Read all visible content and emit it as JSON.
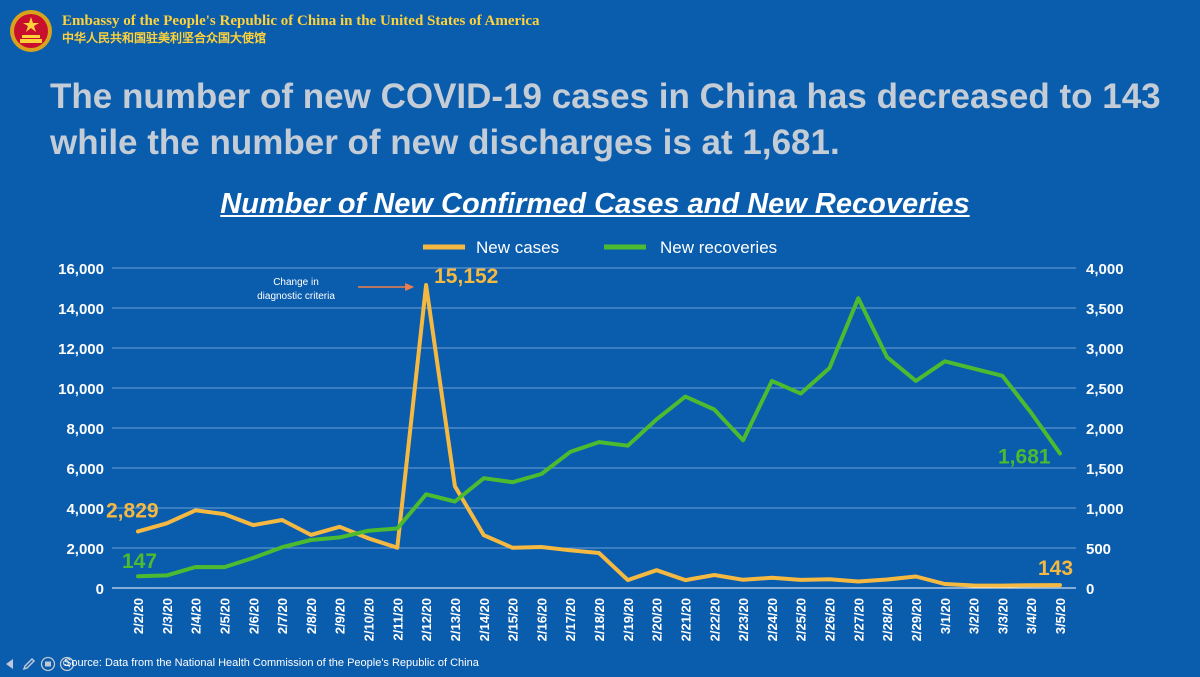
{
  "header": {
    "org_en": "Embassy of the People's Republic of China in the United States of America",
    "org_zh": "中华人民共和国驻美利坚合众国大使馆"
  },
  "headline": "The number of new COVID-19 cases in China has decreased to 143 while the number of new discharges is at 1,681.",
  "source": "Source: Data from the National Health Commission of the People's Republic of China",
  "colors": {
    "background": "#0a5cad",
    "new_cases": "#f5b942",
    "new_recoveries": "#4cbb2f",
    "annotation_arrow": "#f07e4a"
  },
  "chart_data": {
    "type": "line",
    "title": "Number of New Confirmed Cases and New Recoveries",
    "categories": [
      "2/2/20",
      "2/3/20",
      "2/4/20",
      "2/5/20",
      "2/6/20",
      "2/7/20",
      "2/8/20",
      "2/9/20",
      "2/10/20",
      "2/11/20",
      "2/12/20",
      "2/13/20",
      "2/14/20",
      "2/15/20",
      "2/16/20",
      "2/17/20",
      "2/18/20",
      "2/19/20",
      "2/20/20",
      "2/21/20",
      "2/22/20",
      "2/23/20",
      "2/24/20",
      "2/25/20",
      "2/26/20",
      "2/27/20",
      "2/28/20",
      "2/29/20",
      "3/1/20",
      "3/2/20",
      "3/3/20",
      "3/4/20",
      "3/5/20"
    ],
    "series": [
      {
        "name": "New cases",
        "axis": "left",
        "color": "#f5b942",
        "values": [
          2829,
          3235,
          3887,
          3694,
          3143,
          3399,
          2656,
          3062,
          2478,
          2015,
          15152,
          5090,
          2641,
          2009,
          2048,
          1886,
          1749,
          394,
          889,
          397,
          648,
          409,
          508,
          406,
          433,
          327,
          427,
          573,
          202,
          125,
          119,
          139,
          143
        ]
      },
      {
        "name": "New recoveries",
        "axis": "right",
        "color": "#4cbb2f",
        "values": [
          147,
          157,
          262,
          261,
          376,
          510,
          600,
          632,
          716,
          744,
          1171,
          1081,
          1373,
          1323,
          1425,
          1701,
          1824,
          1779,
          2109,
          2393,
          2231,
          1846,
          2589,
          2430,
          2750,
          3622,
          2885,
          2589,
          2834,
          2742,
          2652,
          2189,
          1681
        ]
      }
    ],
    "y_left": {
      "min": 0,
      "max": 16000,
      "ticks": [
        "0",
        "2,000",
        "4,000",
        "6,000",
        "8,000",
        "10,000",
        "12,000",
        "14,000",
        "16,000"
      ]
    },
    "y_right": {
      "min": 0,
      "max": 4000,
      "ticks": [
        "0",
        "500",
        "1,000",
        "1,500",
        "2,000",
        "2,500",
        "3,000",
        "3,500",
        "4,000"
      ]
    },
    "grid": true,
    "legend_position": "top-center",
    "data_labels": [
      {
        "text": "2,829",
        "series": "New cases",
        "index": 0
      },
      {
        "text": "15,152",
        "series": "New cases",
        "index": 10
      },
      {
        "text": "143",
        "series": "New cases",
        "index": 32
      },
      {
        "text": "147",
        "series": "New recoveries",
        "index": 0
      },
      {
        "text": "1,681",
        "series": "New recoveries",
        "index": 32
      }
    ],
    "annotation": {
      "line1": "Change in",
      "line2": "diagnostic criteria",
      "index": 10
    }
  }
}
